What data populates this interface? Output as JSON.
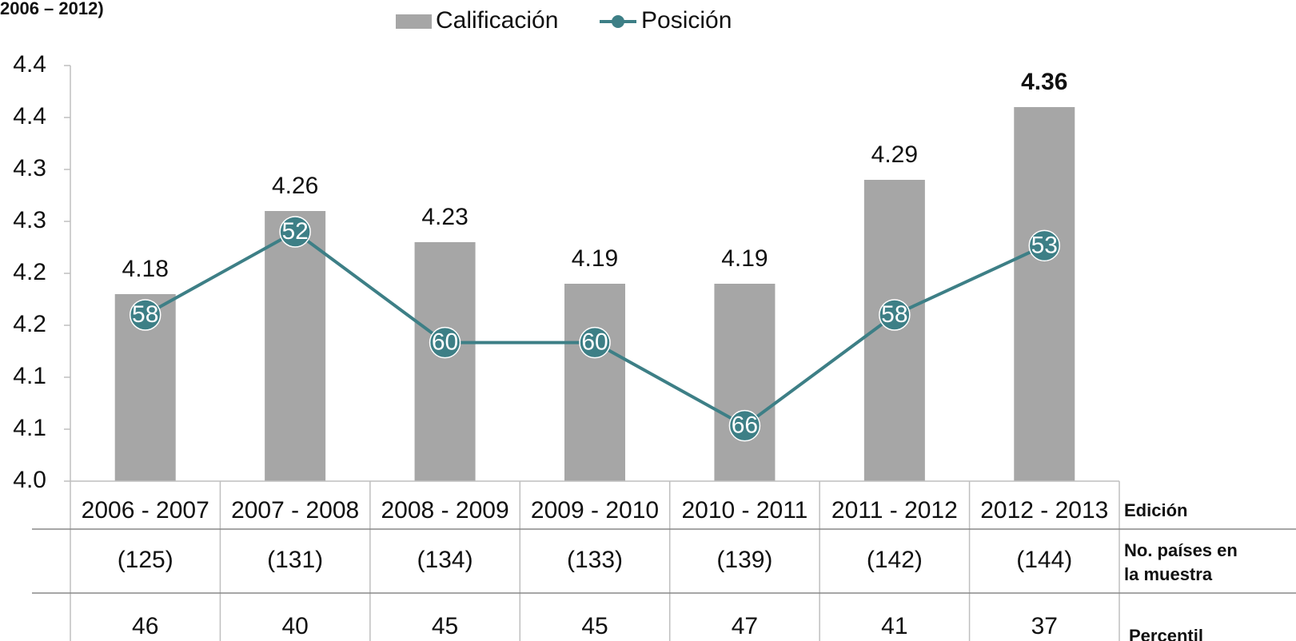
{
  "chart_data": {
    "type": "bar",
    "title": "2006 – 2012)",
    "categories": [
      "2006 - 2007",
      "2007 - 2008",
      "2008 - 2009",
      "2009 - 2010",
      "2010 - 2011",
      "2011 - 2012",
      "2012 - 2013"
    ],
    "series": [
      {
        "name": "Calificación",
        "type": "bar",
        "color": "#a6a6a6",
        "values": [
          4.18,
          4.26,
          4.23,
          4.19,
          4.19,
          4.29,
          4.36
        ]
      },
      {
        "name": "Posición",
        "type": "line",
        "axis": "y2",
        "color": "#3d7f86",
        "values": [
          58,
          52,
          60,
          60,
          66,
          58,
          53
        ]
      }
    ],
    "ylim": [
      4.0,
      4.4
    ],
    "yticks": [
      {
        "value": 4.0,
        "label": "4.0"
      },
      {
        "value": 4.05,
        "label": "4.1"
      },
      {
        "value": 4.1,
        "label": "4.1"
      },
      {
        "value": 4.15,
        "label": "4.2"
      },
      {
        "value": 4.2,
        "label": "4.2"
      },
      {
        "value": 4.25,
        "label": "4.3"
      },
      {
        "value": 4.3,
        "label": "4.3"
      },
      {
        "value": 4.35,
        "label": "4.4"
      },
      {
        "value": 4.4,
        "label": "4.4"
      }
    ],
    "y2lim": [
      70,
      40
    ],
    "legend": "top",
    "table": {
      "row_labels": [
        "Edición",
        [
          "No. países en",
          "la muestra"
        ],
        "Percentil"
      ],
      "rows": [
        [
          "(125)",
          "(131)",
          "(134)",
          "(133)",
          "(139)",
          "(142)",
          "(144)"
        ],
        [
          46,
          40,
          45,
          45,
          47,
          41,
          37
        ]
      ]
    }
  }
}
